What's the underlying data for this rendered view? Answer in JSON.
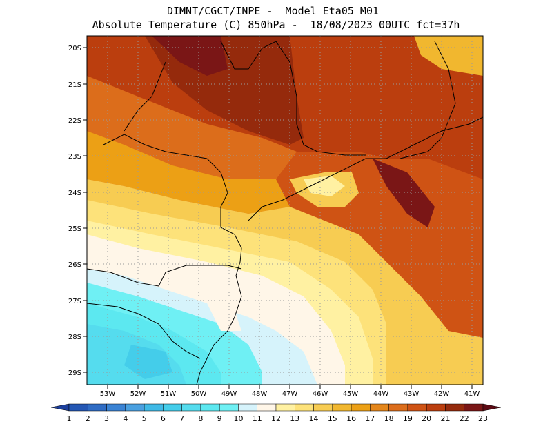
{
  "header": {
    "line1": "DIMNT/CGCT/INPE -  Model Eta05_M01_",
    "line2": "Absolute Temperature (C) 850hPa -  18/08/2023 00UTC fct=37h"
  },
  "axes": {
    "lat_labels": [
      "20S",
      "21S",
      "22S",
      "23S",
      "24S",
      "25S",
      "26S",
      "27S",
      "28S",
      "29S"
    ],
    "lon_labels": [
      "53W",
      "52W",
      "51W",
      "50W",
      "49W",
      "48W",
      "47W",
      "46W",
      "45W",
      "44W",
      "43W",
      "42W",
      "41W"
    ]
  },
  "colorbar": {
    "labels": [
      "1",
      "2",
      "3",
      "4",
      "5",
      "6",
      "7",
      "8",
      "9",
      "10",
      "11",
      "12",
      "13",
      "14",
      "15",
      "16",
      "17",
      "18",
      "19",
      "20",
      "21",
      "22",
      "23"
    ],
    "colors": [
      "#1c3f9c",
      "#2457b4",
      "#2f6cc4",
      "#3a83d4",
      "#4aa0e0",
      "#3fb9e6",
      "#44cdea",
      "#55dcee",
      "#5ce8f0",
      "#6ff0f4",
      "#d6f3fb",
      "#fff6e8",
      "#fff1a2",
      "#fde27a",
      "#f7cc52",
      "#f1b72f",
      "#eca015",
      "#e4861a",
      "#dc6d1b",
      "#cf5314",
      "#bb3e0e",
      "#952a0c",
      "#7a1616",
      "#5c0a14"
    ]
  },
  "map": {
    "field": "temperature_850hPa",
    "units": "C"
  }
}
